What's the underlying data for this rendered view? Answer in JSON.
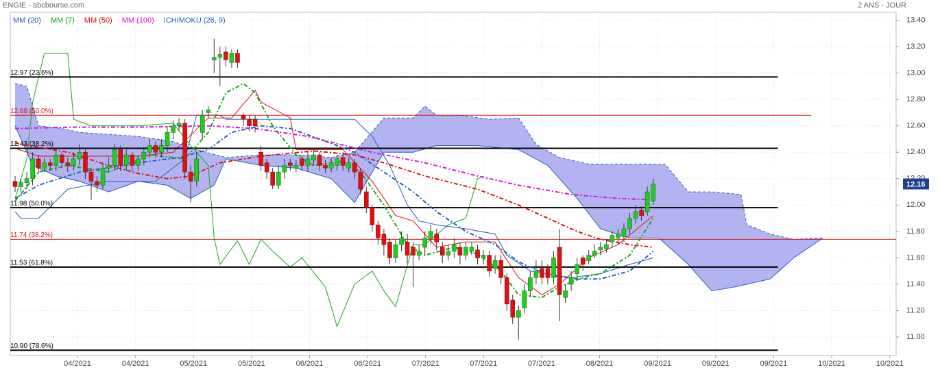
{
  "chart_data": {
    "type": "candlestick",
    "title": "ENGIE - abcbourse.com",
    "subtitle": "2 ANS - JOUR",
    "ylim": [
      10.86,
      13.46
    ],
    "yticks": [
      {
        "value": 11,
        "label": "11.00"
      },
      {
        "value": 11.2,
        "label": "11.20"
      },
      {
        "value": 11.4,
        "label": "11.40"
      },
      {
        "value": 11.6,
        "label": "11.60"
      },
      {
        "value": 11.8,
        "label": "11.80"
      },
      {
        "value": 12,
        "label": "12.00"
      },
      {
        "value": 12.2,
        "label": "12.20"
      },
      {
        "value": 12.4,
        "label": "12.40"
      },
      {
        "value": 12.6,
        "label": "12.60"
      },
      {
        "value": 12.8,
        "label": "12.80"
      },
      {
        "value": 13,
        "label": "13.00"
      },
      {
        "value": 13.2,
        "label": "13.20"
      },
      {
        "value": 13.4,
        "label": "13.40"
      }
    ],
    "xlim": [
      -0.82,
      150.5
    ],
    "xticks": [
      {
        "value": 10.66,
        "label": "04/2021"
      },
      {
        "value": 20.57,
        "label": "04/2021"
      },
      {
        "value": 30.48,
        "label": "05/2021"
      },
      {
        "value": 40.39,
        "label": "05/2021"
      },
      {
        "value": 50.3,
        "label": "06/2021"
      },
      {
        "value": 60.21,
        "label": "06/2021"
      },
      {
        "value": 70.12,
        "label": "07/2021"
      },
      {
        "value": 80.03,
        "label": "07/2021"
      },
      {
        "value": 89.94,
        "label": "07/2021"
      },
      {
        "value": 99.85,
        "label": "08/2021"
      },
      {
        "value": 109.76,
        "label": "09/2021"
      },
      {
        "value": 119.67,
        "label": "09/2021"
      },
      {
        "value": 129.58,
        "label": "09/2021"
      },
      {
        "value": 139.49,
        "label": "10/2021"
      },
      {
        "value": 149.4,
        "label": "10/2021"
      }
    ],
    "grid": true,
    "last_price": 12.16,
    "last_price_color": "#1f3f8f",
    "up_color": "#22cc22",
    "down_color": "#dd1111",
    "candles": {
      "open": [
        12.18,
        12.14,
        12.17,
        12.2,
        12.35,
        12.28,
        12.32,
        12.3,
        12.38,
        12.32,
        12.3,
        12.35,
        12.4,
        12.25,
        12.18,
        12.15,
        12.28,
        12.3,
        12.42,
        12.3,
        12.38,
        12.3,
        12.35,
        12.4,
        12.45,
        12.4,
        12.45,
        12.55,
        12.6,
        12.62,
        12.25,
        12.18,
        12.55,
        12.7,
        13.1,
        13.12,
        13.16,
        13.08,
        13.15,
        12.68,
        12.65,
        12.65,
        12.4,
        12.32,
        12.25,
        12.15,
        12.25,
        12.32,
        12.28,
        12.35,
        12.3,
        12.34,
        12.38,
        12.3,
        12.28,
        12.3,
        12.36,
        12.28,
        12.32,
        12.25,
        12.1,
        11.98,
        11.85,
        11.78,
        11.72,
        11.6,
        11.7,
        11.72,
        11.68,
        11.62,
        11.68,
        11.75,
        11.78,
        11.68,
        11.62,
        11.65,
        11.68,
        11.62,
        11.65,
        11.66,
        11.6,
        11.62,
        11.52,
        11.58,
        11.45,
        11.28,
        11.15,
        11.22,
        11.35,
        11.45,
        11.52,
        11.52,
        11.45,
        11.68,
        11.3,
        11.4,
        11.48,
        11.6,
        11.58,
        11.62,
        11.66,
        11.67,
        11.72,
        11.75,
        11.76,
        11.82,
        11.9,
        11.96,
        11.95,
        12.03
      ],
      "high": [
        12.22,
        12.2,
        12.25,
        12.4,
        12.38,
        12.36,
        12.35,
        12.42,
        12.4,
        12.36,
        12.4,
        12.46,
        12.42,
        12.28,
        12.22,
        12.32,
        12.36,
        12.46,
        12.45,
        12.42,
        12.4,
        12.38,
        12.44,
        12.5,
        12.48,
        12.5,
        12.6,
        12.64,
        12.66,
        12.65,
        12.3,
        12.4,
        12.72,
        12.75,
        13.26,
        13.2,
        13.2,
        13.18,
        13.18,
        12.7,
        12.68,
        12.68,
        12.45,
        12.35,
        12.28,
        12.3,
        12.35,
        12.35,
        12.34,
        12.38,
        12.4,
        12.42,
        12.4,
        12.34,
        12.36,
        12.38,
        12.4,
        12.36,
        12.35,
        12.28,
        12.14,
        12.0,
        11.88,
        11.82,
        11.75,
        11.74,
        11.8,
        11.78,
        11.72,
        11.7,
        11.8,
        11.85,
        11.82,
        11.72,
        11.7,
        11.75,
        11.72,
        11.72,
        11.72,
        11.7,
        11.66,
        11.65,
        11.62,
        11.62,
        11.48,
        11.32,
        11.24,
        11.4,
        11.5,
        11.58,
        11.58,
        11.55,
        11.65,
        11.82,
        11.4,
        11.5,
        11.6,
        11.62,
        11.66,
        11.7,
        11.72,
        11.74,
        11.8,
        11.82,
        11.86,
        11.94,
        12.0,
        11.99,
        12.14,
        12.2
      ],
      "low": [
        12.1,
        12.1,
        12.12,
        12.15,
        12.24,
        12.25,
        12.26,
        12.26,
        12.28,
        12.25,
        12.26,
        12.3,
        12.2,
        12.04,
        12.1,
        12.12,
        12.25,
        12.26,
        12.26,
        12.26,
        12.26,
        12.26,
        12.3,
        12.36,
        12.36,
        12.36,
        12.4,
        12.5,
        12.56,
        12.2,
        12.02,
        12.14,
        12.5,
        12.66,
        13.0,
        12.9,
        13.05,
        13.04,
        13.04,
        12.6,
        12.56,
        12.55,
        12.26,
        12.2,
        12.12,
        12.12,
        12.2,
        12.26,
        12.25,
        12.26,
        12.26,
        12.3,
        12.26,
        12.24,
        12.25,
        12.26,
        12.26,
        12.25,
        12.2,
        12.08,
        11.94,
        11.8,
        11.7,
        11.62,
        11.55,
        11.56,
        11.65,
        11.56,
        11.38,
        11.58,
        11.62,
        11.7,
        11.66,
        11.56,
        11.58,
        11.6,
        11.55,
        11.58,
        11.62,
        11.55,
        11.55,
        11.46,
        11.48,
        11.4,
        11.2,
        11.1,
        10.98,
        11.18,
        11.3,
        11.4,
        11.4,
        11.4,
        11.4,
        11.12,
        11.26,
        11.35,
        11.44,
        11.5,
        11.55,
        11.6,
        11.62,
        11.64,
        11.68,
        11.7,
        11.72,
        11.78,
        11.86,
        11.88,
        11.92,
        12.0
      ],
      "close": [
        12.14,
        12.17,
        12.2,
        12.35,
        12.28,
        12.32,
        12.3,
        12.38,
        12.32,
        12.3,
        12.35,
        12.4,
        12.25,
        12.18,
        12.15,
        12.28,
        12.3,
        12.42,
        12.3,
        12.38,
        12.3,
        12.35,
        12.4,
        12.45,
        12.4,
        12.45,
        12.55,
        12.6,
        12.62,
        12.25,
        12.18,
        12.35,
        12.68,
        12.72,
        13.12,
        13.14,
        13.1,
        13.15,
        13.08,
        12.65,
        12.6,
        12.6,
        12.3,
        12.25,
        12.15,
        12.25,
        12.3,
        12.3,
        12.3,
        12.3,
        12.35,
        12.38,
        12.3,
        12.28,
        12.32,
        12.35,
        12.3,
        12.32,
        12.25,
        12.12,
        11.98,
        11.85,
        11.75,
        11.7,
        11.6,
        11.7,
        11.75,
        11.62,
        11.62,
        11.65,
        11.75,
        11.8,
        11.72,
        11.62,
        11.65,
        11.7,
        11.62,
        11.68,
        11.68,
        11.6,
        11.62,
        11.5,
        11.58,
        11.45,
        11.25,
        11.15,
        11.2,
        11.35,
        11.45,
        11.5,
        11.45,
        11.45,
        11.6,
        11.32,
        11.35,
        11.45,
        11.55,
        11.55,
        11.62,
        11.65,
        11.68,
        11.7,
        11.77,
        11.78,
        11.82,
        11.9,
        11.95,
        11.92,
        12.1,
        12.16
      ]
    },
    "series": [
      {
        "name": "MM (20)",
        "color": "#1f5fbf",
        "x": [
          0,
          4,
          11,
          21,
          28,
          33,
          37,
          42,
          47,
          52,
          58,
          63,
          68,
          72,
          77,
          82,
          86,
          91,
          96,
          100,
          105,
          109
        ],
        "values": [
          12.05,
          12.15,
          12.25,
          12.32,
          12.36,
          12.42,
          12.55,
          12.6,
          12.58,
          12.5,
          12.4,
          12.25,
          12.1,
          11.95,
          11.8,
          11.7,
          11.57,
          11.47,
          11.44,
          11.44,
          11.5,
          11.65
        ]
      },
      {
        "name": "MM (7)",
        "color": "#13a813",
        "x": [
          0,
          4,
          9,
          16,
          23,
          29,
          33,
          36,
          39,
          41,
          44,
          48,
          51,
          56,
          59,
          63,
          67,
          70,
          75,
          79,
          83,
          86,
          90,
          93,
          97,
          100,
          105,
          109
        ],
        "values": [
          12.03,
          12.25,
          12.3,
          12.25,
          12.38,
          12.35,
          12.55,
          12.85,
          12.92,
          12.85,
          12.6,
          12.38,
          12.3,
          12.33,
          12.25,
          12.0,
          11.7,
          11.62,
          11.68,
          11.63,
          11.5,
          11.32,
          11.3,
          11.38,
          11.45,
          11.48,
          11.62,
          11.9
        ]
      },
      {
        "name": "MM (50)",
        "color": "#dd1111",
        "x": [
          0,
          9,
          16,
          21,
          26,
          30,
          35,
          42,
          51,
          58,
          63,
          70,
          79,
          86,
          91,
          96,
          100,
          105,
          109
        ],
        "values": [
          12.47,
          12.4,
          12.3,
          12.24,
          12.2,
          12.22,
          12.32,
          12.37,
          12.41,
          12.38,
          12.32,
          12.22,
          12.12,
          12.0,
          11.9,
          11.8,
          11.74,
          11.7,
          11.68
        ]
      },
      {
        "name": "MM (100)",
        "color": "#dd11dd",
        "x": [
          0,
          10,
          21,
          33,
          41,
          50,
          61,
          70,
          79,
          86,
          95,
          103,
          109
        ],
        "values": [
          12.58,
          12.59,
          12.59,
          12.6,
          12.58,
          12.52,
          12.4,
          12.32,
          12.22,
          12.15,
          12.08,
          12.05,
          12.04
        ]
      }
    ],
    "ichimoku": {
      "name": "ICHIMOKU (26, 9)",
      "color": "#1f5fbf",
      "cloud_color": "#9999ee",
      "cloud_top": {
        "x": [
          0,
          2,
          4,
          8,
          11,
          21,
          27,
          31,
          36,
          42,
          48,
          54,
          58,
          63,
          68,
          70,
          72,
          76,
          81,
          86,
          89,
          93,
          98,
          103,
          111,
          115,
          119,
          124,
          125,
          129,
          133,
          138
        ],
        "values": [
          12.92,
          12.9,
          12.6,
          12.58,
          12.55,
          12.52,
          12.48,
          12.42,
          12.36,
          12.38,
          12.38,
          12.36,
          12.4,
          12.66,
          12.66,
          12.75,
          12.68,
          12.68,
          12.65,
          12.66,
          12.46,
          12.36,
          12.31,
          12.31,
          12.31,
          12.1,
          12.1,
          12.08,
          11.85,
          11.78,
          11.74,
          11.75
        ]
      },
      "cloud_bottom": {
        "x": [
          0,
          3,
          7,
          11,
          16,
          21,
          26,
          30,
          34,
          36,
          42,
          48,
          54,
          58,
          63,
          68,
          72,
          79,
          86,
          91,
          96,
          100,
          105,
          110,
          115,
          119,
          123,
          129,
          133,
          138
        ],
        "values": [
          12.6,
          12.3,
          12.22,
          12.18,
          12.1,
          12.18,
          12.15,
          12.05,
          12.15,
          12.35,
          12.3,
          12.28,
          12.2,
          12.02,
          12.4,
          12.4,
          12.45,
          12.45,
          12.42,
          12.3,
          12.05,
          11.82,
          11.75,
          11.75,
          11.55,
          11.35,
          11.38,
          11.44,
          11.6,
          11.75
        ]
      },
      "tenkan": {
        "color": "#1f5fbf",
        "x": [
          0,
          1,
          4,
          9,
          16,
          24,
          29,
          31,
          35,
          36,
          58,
          61,
          64,
          67,
          69,
          72,
          77,
          82,
          84,
          88,
          95,
          100,
          105,
          109
        ],
        "values": [
          11.95,
          11.9,
          11.9,
          12.12,
          12.18,
          12.18,
          12.35,
          12.68,
          12.68,
          12.65,
          12.65,
          12.52,
          12.3,
          12.0,
          11.88,
          11.85,
          11.82,
          11.78,
          11.62,
          11.5,
          11.45,
          11.48,
          11.55,
          11.6
        ]
      },
      "kijun": {
        "color": "#dd1111",
        "x": [
          0,
          4,
          11,
          21,
          27,
          33,
          37,
          41,
          42,
          47,
          48,
          56,
          61,
          65,
          68,
          72,
          77,
          82,
          86,
          90,
          93,
          98,
          103,
          109
        ],
        "values": [
          12.43,
          12.37,
          12.37,
          12.37,
          12.4,
          12.66,
          12.66,
          12.87,
          12.78,
          12.66,
          12.42,
          12.42,
          12.18,
          11.92,
          11.88,
          11.68,
          11.72,
          11.72,
          11.45,
          11.32,
          11.4,
          11.6,
          11.7,
          11.92
        ]
      },
      "chikou": {
        "color": "#13a813",
        "x": [
          0,
          2,
          3,
          5,
          9,
          10,
          13,
          21,
          27,
          30,
          33,
          34,
          35,
          38,
          40,
          42,
          44,
          47,
          49,
          53,
          55,
          58,
          61,
          63,
          65,
          68,
          70,
          74,
          77,
          79,
          80
        ],
        "values": [
          12.05,
          12.35,
          12.78,
          13.15,
          13.15,
          12.65,
          12.6,
          12.6,
          12.62,
          12.45,
          12.3,
          11.75,
          11.55,
          11.73,
          11.55,
          11.74,
          11.65,
          11.53,
          11.6,
          11.38,
          11.08,
          11.4,
          11.5,
          11.35,
          11.23,
          11.7,
          11.7,
          11.85,
          11.9,
          12.2,
          12.22
        ]
      }
    },
    "fib_levels": [
      {
        "value": 12.97,
        "label": "12.97  (23.6%)",
        "color": "#000000",
        "x_end": 130.3
      },
      {
        "value": 12.68,
        "label": "12.68  (50.0%)",
        "color": "#dd1111",
        "x_end": 136
      },
      {
        "value": 12.43,
        "label": "12.43  (38.2%)",
        "color": "#000000",
        "x_end": 130.3
      },
      {
        "value": 11.98,
        "label": "11.98  (50.0%)",
        "color": "#000000",
        "x_end": 130.3
      },
      {
        "value": 11.74,
        "label": "11.74  (38.2%)",
        "color": "#dd1111",
        "x_end": 150.5
      },
      {
        "value": 11.53,
        "label": "11.53  (61.8%)",
        "color": "#000000",
        "x_end": 130.3
      },
      {
        "value": 10.9,
        "label": "10.90  (78.6%)",
        "color": "#000000",
        "x_end": 130.3
      }
    ]
  }
}
